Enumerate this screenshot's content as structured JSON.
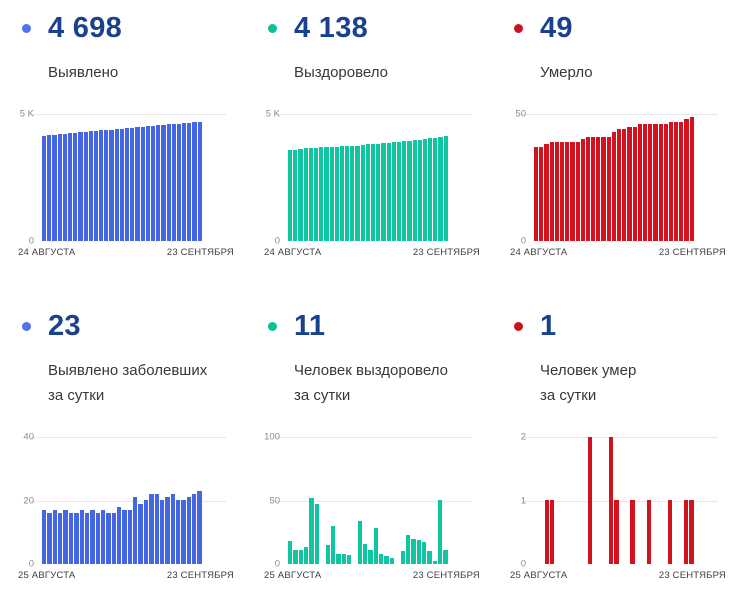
{
  "panels": [
    {
      "id": "detected-total",
      "value": "4 698",
      "label": "Выявлено",
      "accent": "#5173e9"
    },
    {
      "id": "recovered-total",
      "value": "4 138",
      "label": "Выздоровело",
      "accent": "#0bbf96"
    },
    {
      "id": "died-total",
      "value": "49",
      "label": "Умерло",
      "accent": "#cb1221"
    },
    {
      "id": "detected-daily",
      "value": "23",
      "label": "Выявлено заболевших\nза сутки",
      "accent": "#5173e9"
    },
    {
      "id": "recovered-daily",
      "value": "11",
      "label": "Человек выздоровело\nза сутки",
      "accent": "#0bbf96"
    },
    {
      "id": "died-daily",
      "value": "1",
      "label": "Человек умер\nза сутки",
      "accent": "#cb1221"
    }
  ],
  "chart_data": [
    {
      "type": "bar",
      "title": "Выявлено",
      "color": "#4566e4",
      "x_start_label": "24 АВГУСТА",
      "x_end_label": "23 СЕНТЯБРЯ",
      "y_max": 5000,
      "ylim": [
        0,
        5000
      ],
      "grid": "horizontal",
      "legend": "none",
      "y_ticks": [
        {
          "label": "5 K",
          "value": 5000
        },
        {
          "label": "0",
          "value": 0
        }
      ],
      "values": [
        4152,
        4170,
        4188,
        4206,
        4224,
        4243,
        4261,
        4279,
        4297,
        4315,
        4333,
        4351,
        4370,
        4388,
        4406,
        4424,
        4442,
        4460,
        4478,
        4497,
        4515,
        4533,
        4551,
        4569,
        4587,
        4605,
        4624,
        4642,
        4660,
        4679,
        4698
      ]
    },
    {
      "type": "bar",
      "title": "Выздоровело",
      "color": "#10c6a1",
      "x_start_label": "24 АВГУСТА",
      "x_end_label": "23 СЕНТЯБРЯ",
      "y_max": 5000,
      "ylim": [
        0,
        5000
      ],
      "grid": "horizontal",
      "legend": "none",
      "y_ticks": [
        {
          "label": "5 K",
          "value": 5000
        },
        {
          "label": "0",
          "value": 0
        }
      ],
      "values": [
        3590,
        3598,
        3605,
        3652,
        3660,
        3672,
        3684,
        3695,
        3705,
        3714,
        3726,
        3735,
        3744,
        3756,
        3792,
        3804,
        3818,
        3832,
        3848,
        3864,
        3882,
        3902,
        3922,
        3946,
        3968,
        3990,
        4015,
        4044,
        4074,
        4105,
        4138
      ]
    },
    {
      "type": "bar",
      "title": "Умерло",
      "color": "#d2121f",
      "x_start_label": "24 АВГУСТА",
      "x_end_label": "23 СЕНТЯБРЯ",
      "y_max": 50,
      "ylim": [
        0,
        50
      ],
      "grid": "horizontal",
      "legend": "none",
      "y_ticks": [
        {
          "label": "50",
          "value": 50
        },
        {
          "label": "0",
          "value": 0
        }
      ],
      "values": [
        37,
        37,
        38,
        39,
        39,
        39,
        39,
        39,
        39,
        40,
        41,
        41,
        41,
        41,
        41,
        43,
        44,
        44,
        45,
        45,
        46,
        46,
        46,
        46,
        46,
        46,
        47,
        47,
        47,
        48,
        49
      ]
    },
    {
      "type": "bar",
      "title": "Выявлено заболевших за сутки",
      "color": "#4566e4",
      "x_start_label": "25 АВГУСТА",
      "x_end_label": "23 СЕНТЯБРЯ",
      "y_max": 40,
      "ylim": [
        0,
        40
      ],
      "grid": "horizontal",
      "legend": "none",
      "y_ticks": [
        {
          "label": "40",
          "value": 40
        },
        {
          "label": "20",
          "value": 20
        },
        {
          "label": "0",
          "value": 0
        }
      ],
      "values": [
        17,
        16,
        17,
        16,
        17,
        16,
        16,
        17,
        16,
        17,
        16,
        17,
        16,
        16,
        18,
        17,
        17,
        21,
        19,
        20,
        22,
        22,
        20,
        21,
        22,
        20,
        20,
        21,
        22,
        23
      ]
    },
    {
      "type": "bar",
      "title": "Человек выздоровело за сутки",
      "color": "#10c6a1",
      "x_start_label": "25 АВГУСТА",
      "x_end_label": "23 СЕНТЯБРЯ",
      "y_max": 100,
      "ylim": [
        0,
        100
      ],
      "grid": "horizontal",
      "legend": "none",
      "y_ticks": [
        {
          "label": "100",
          "value": 100
        },
        {
          "label": "50",
          "value": 50
        },
        {
          "label": "0",
          "value": 0
        }
      ],
      "values": [
        18,
        11,
        11,
        13,
        52,
        47,
        0,
        15,
        30,
        8,
        8,
        7,
        0,
        34,
        16,
        11,
        28,
        8,
        6,
        5,
        0,
        10,
        23,
        20,
        19,
        17,
        10,
        2,
        50,
        11
      ]
    },
    {
      "type": "bar",
      "title": "Человек умер за сутки",
      "color": "#d2121f",
      "x_start_label": "25 АВГУСТА",
      "x_end_label": "23 СЕНТЯБРЯ",
      "y_max": 2,
      "ylim": [
        0,
        2
      ],
      "grid": "horizontal",
      "legend": "none",
      "y_ticks": [
        {
          "label": "2",
          "value": 2
        },
        {
          "label": "1",
          "value": 1
        },
        {
          "label": "0",
          "value": 0
        }
      ],
      "values": [
        0,
        0,
        1,
        1,
        0,
        0,
        0,
        0,
        0,
        0,
        2,
        0,
        0,
        0,
        2,
        1,
        0,
        0,
        1,
        0,
        0,
        1,
        0,
        0,
        0,
        1,
        0,
        0,
        1,
        1
      ]
    }
  ]
}
